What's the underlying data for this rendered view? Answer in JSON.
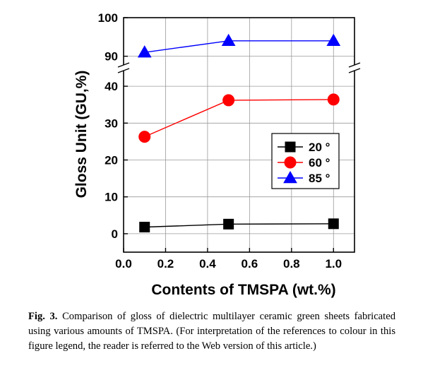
{
  "chart_data": {
    "type": "line",
    "title": "",
    "xlabel": "Contents of TMSPA (wt.%)",
    "ylabel": "Gloss Unit (GU,%)",
    "xlim": [
      0.0,
      1.1
    ],
    "x_ticks": [
      "0.0",
      "0.2",
      "0.4",
      "0.6",
      "0.8",
      "1.0"
    ],
    "y_axis_broken": true,
    "y_segments": [
      {
        "range": [
          -5,
          45
        ],
        "ticks": [
          "0",
          "10",
          "20",
          "30",
          "40"
        ]
      },
      {
        "range": [
          87,
          100
        ],
        "ticks": [
          "90",
          "100"
        ]
      }
    ],
    "grid": true,
    "legend_position": "center-right",
    "series": [
      {
        "name": "20 °",
        "color": "#000000",
        "marker": "square",
        "x": [
          0.1,
          0.5,
          1.0
        ],
        "y": [
          1.8,
          2.6,
          2.7
        ]
      },
      {
        "name": "60 °",
        "color": "#ff0000",
        "marker": "circle",
        "x": [
          0.1,
          0.5,
          1.0
        ],
        "y": [
          26.3,
          36.2,
          36.4
        ]
      },
      {
        "name": "85 °",
        "color": "#0000ff",
        "marker": "triangle",
        "x": [
          0.1,
          0.5,
          1.0
        ],
        "y": [
          91.0,
          94.0,
          94.0
        ]
      }
    ]
  },
  "caption": {
    "label": "Fig. 3.",
    "text": "Comparison of gloss of dielectric multilayer ceramic green sheets fabricated using various amounts of TMSPA. (For interpretation of the references to colour in this figure legend, the reader is referred to the Web version of this article.)"
  }
}
